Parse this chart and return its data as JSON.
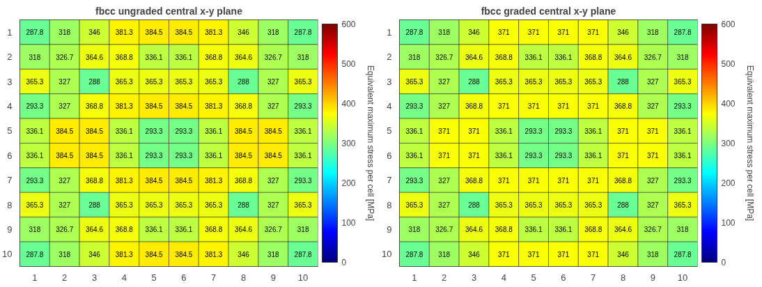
{
  "chart_data": [
    {
      "type": "heatmap",
      "title": "fbcc ungraded central x-y plane",
      "clabel": "Equivalent maximum stress per cell [MPa]",
      "categories": [
        "1",
        "2",
        "3",
        "4",
        "5",
        "6",
        "7",
        "8",
        "9",
        "10"
      ],
      "y_categories": [
        "1",
        "2",
        "3",
        "4",
        "5",
        "6",
        "7",
        "8",
        "9",
        "10"
      ],
      "cells": [
        [
          287.8,
          318,
          346,
          381.3,
          384.5,
          384.5,
          381.3,
          346,
          318,
          287.8
        ],
        [
          318,
          326.7,
          364.6,
          368.8,
          336.1,
          336.1,
          368.8,
          364.6,
          326.7,
          318
        ],
        [
          365.3,
          327,
          288,
          365.3,
          365.3,
          365.3,
          365.3,
          288,
          327,
          365.3
        ],
        [
          293.3,
          327,
          368.8,
          381.3,
          384.5,
          384.5,
          381.3,
          368.8,
          327,
          293.3
        ],
        [
          336.1,
          384.5,
          384.5,
          336.1,
          293.3,
          293.3,
          336.1,
          384.5,
          384.5,
          336.1
        ],
        [
          336.1,
          384.5,
          384.5,
          336.1,
          293.3,
          293.3,
          336.1,
          384.5,
          384.5,
          336.1
        ],
        [
          293.3,
          327,
          368.8,
          381.3,
          384.5,
          384.5,
          381.3,
          368.8,
          327,
          293.3
        ],
        [
          365.3,
          327,
          288,
          365.3,
          365.3,
          365.3,
          365.3,
          288,
          327,
          365.3
        ],
        [
          318,
          326.7,
          364.6,
          368.8,
          336.1,
          336.1,
          368.8,
          364.6,
          326.7,
          318
        ],
        [
          287.8,
          318,
          346,
          381.3,
          384.5,
          384.5,
          381.3,
          346,
          318,
          287.8
        ]
      ],
      "clim": [
        0,
        600
      ],
      "cticks": [
        0,
        100,
        200,
        300,
        400,
        500,
        600
      ],
      "data_labels": true
    },
    {
      "type": "heatmap",
      "title": "fbcc graded central x-y plane",
      "clabel": "Equivalent maximum stress per cell [MPa]",
      "categories": [
        "1",
        "2",
        "3",
        "4",
        "5",
        "6",
        "7",
        "8",
        "9",
        "10"
      ],
      "y_categories": [
        "1",
        "2",
        "3",
        "4",
        "5",
        "6",
        "7",
        "8",
        "9",
        "10"
      ],
      "cells": [
        [
          287.8,
          318,
          346,
          371,
          371,
          371,
          371,
          346,
          318,
          287.8
        ],
        [
          318,
          326.7,
          364.6,
          368.8,
          336.1,
          336.1,
          368.8,
          364.6,
          326.7,
          318
        ],
        [
          365.3,
          327,
          288,
          365.3,
          365.3,
          365.3,
          365.3,
          288,
          327,
          365.3
        ],
        [
          293.3,
          327,
          368.8,
          371,
          371,
          371,
          371,
          368.8,
          327,
          293.3
        ],
        [
          336.1,
          371,
          371,
          336.1,
          293.3,
          293.3,
          336.1,
          371,
          371,
          336.1
        ],
        [
          336.1,
          371,
          371,
          336.1,
          293.3,
          293.3,
          336.1,
          371,
          371,
          336.1
        ],
        [
          293.3,
          327,
          368.8,
          371,
          371,
          371,
          371,
          368.8,
          327,
          293.3
        ],
        [
          365.3,
          327,
          288,
          365.3,
          365.3,
          365.3,
          365.3,
          288,
          327,
          365.3
        ],
        [
          318,
          326.7,
          364.6,
          368.8,
          336.1,
          336.1,
          368.8,
          364.6,
          326.7,
          318
        ],
        [
          287.8,
          318,
          346,
          371,
          371,
          371,
          371,
          346,
          318,
          287.8
        ]
      ],
      "clim": [
        0,
        600
      ],
      "cticks": [
        0,
        100,
        200,
        300,
        400,
        500,
        600
      ],
      "data_labels": true
    }
  ]
}
